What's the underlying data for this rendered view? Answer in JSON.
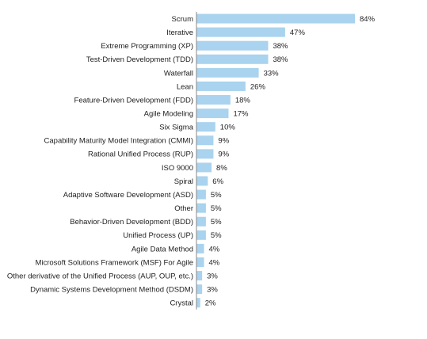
{
  "chart_data": {
    "type": "bar",
    "orientation": "horizontal",
    "title": "",
    "xlabel": "",
    "ylabel": "",
    "value_suffix": "%",
    "grid": false,
    "bar_color": "#a9d3ee",
    "axis_color": "#888888",
    "categories": [
      "Scrum",
      "Iterative",
      "Extreme Programming (XP)",
      "Test-Driven Development (TDD)",
      "Waterfall",
      "Lean",
      "Feature-Driven Development (FDD)",
      "Agile Modeling",
      "Six Sigma",
      "Capability Maturity Model Integration (CMMI)",
      "Rational Unified Process (RUP)",
      "ISO 9000",
      "Spiral",
      "Adaptive Software Development (ASD)",
      "Other",
      "Behavior-Driven Development (BDD)",
      "Unified Process (UP)",
      "Agile Data Method",
      "Microsoft Solutions Framework (MSF) For Agile",
      "Other derivative of the Unified Process (AUP, OUP, etc.)",
      "Dynamic Systems Development Method (DSDM)",
      "Crystal"
    ],
    "values": [
      84,
      47,
      38,
      38,
      33,
      26,
      18,
      17,
      10,
      9,
      9,
      8,
      6,
      5,
      5,
      5,
      5,
      4,
      4,
      3,
      3,
      2
    ],
    "value_labels": [
      "84%",
      "47%",
      "38%",
      "38%",
      "33%",
      "26%",
      "18%",
      "17%",
      "10%",
      "9%",
      "9%",
      "8%",
      "6%",
      "5%",
      "5%",
      "5%",
      "5%",
      "4%",
      "4%",
      "3%",
      "3%",
      "2%"
    ]
  }
}
